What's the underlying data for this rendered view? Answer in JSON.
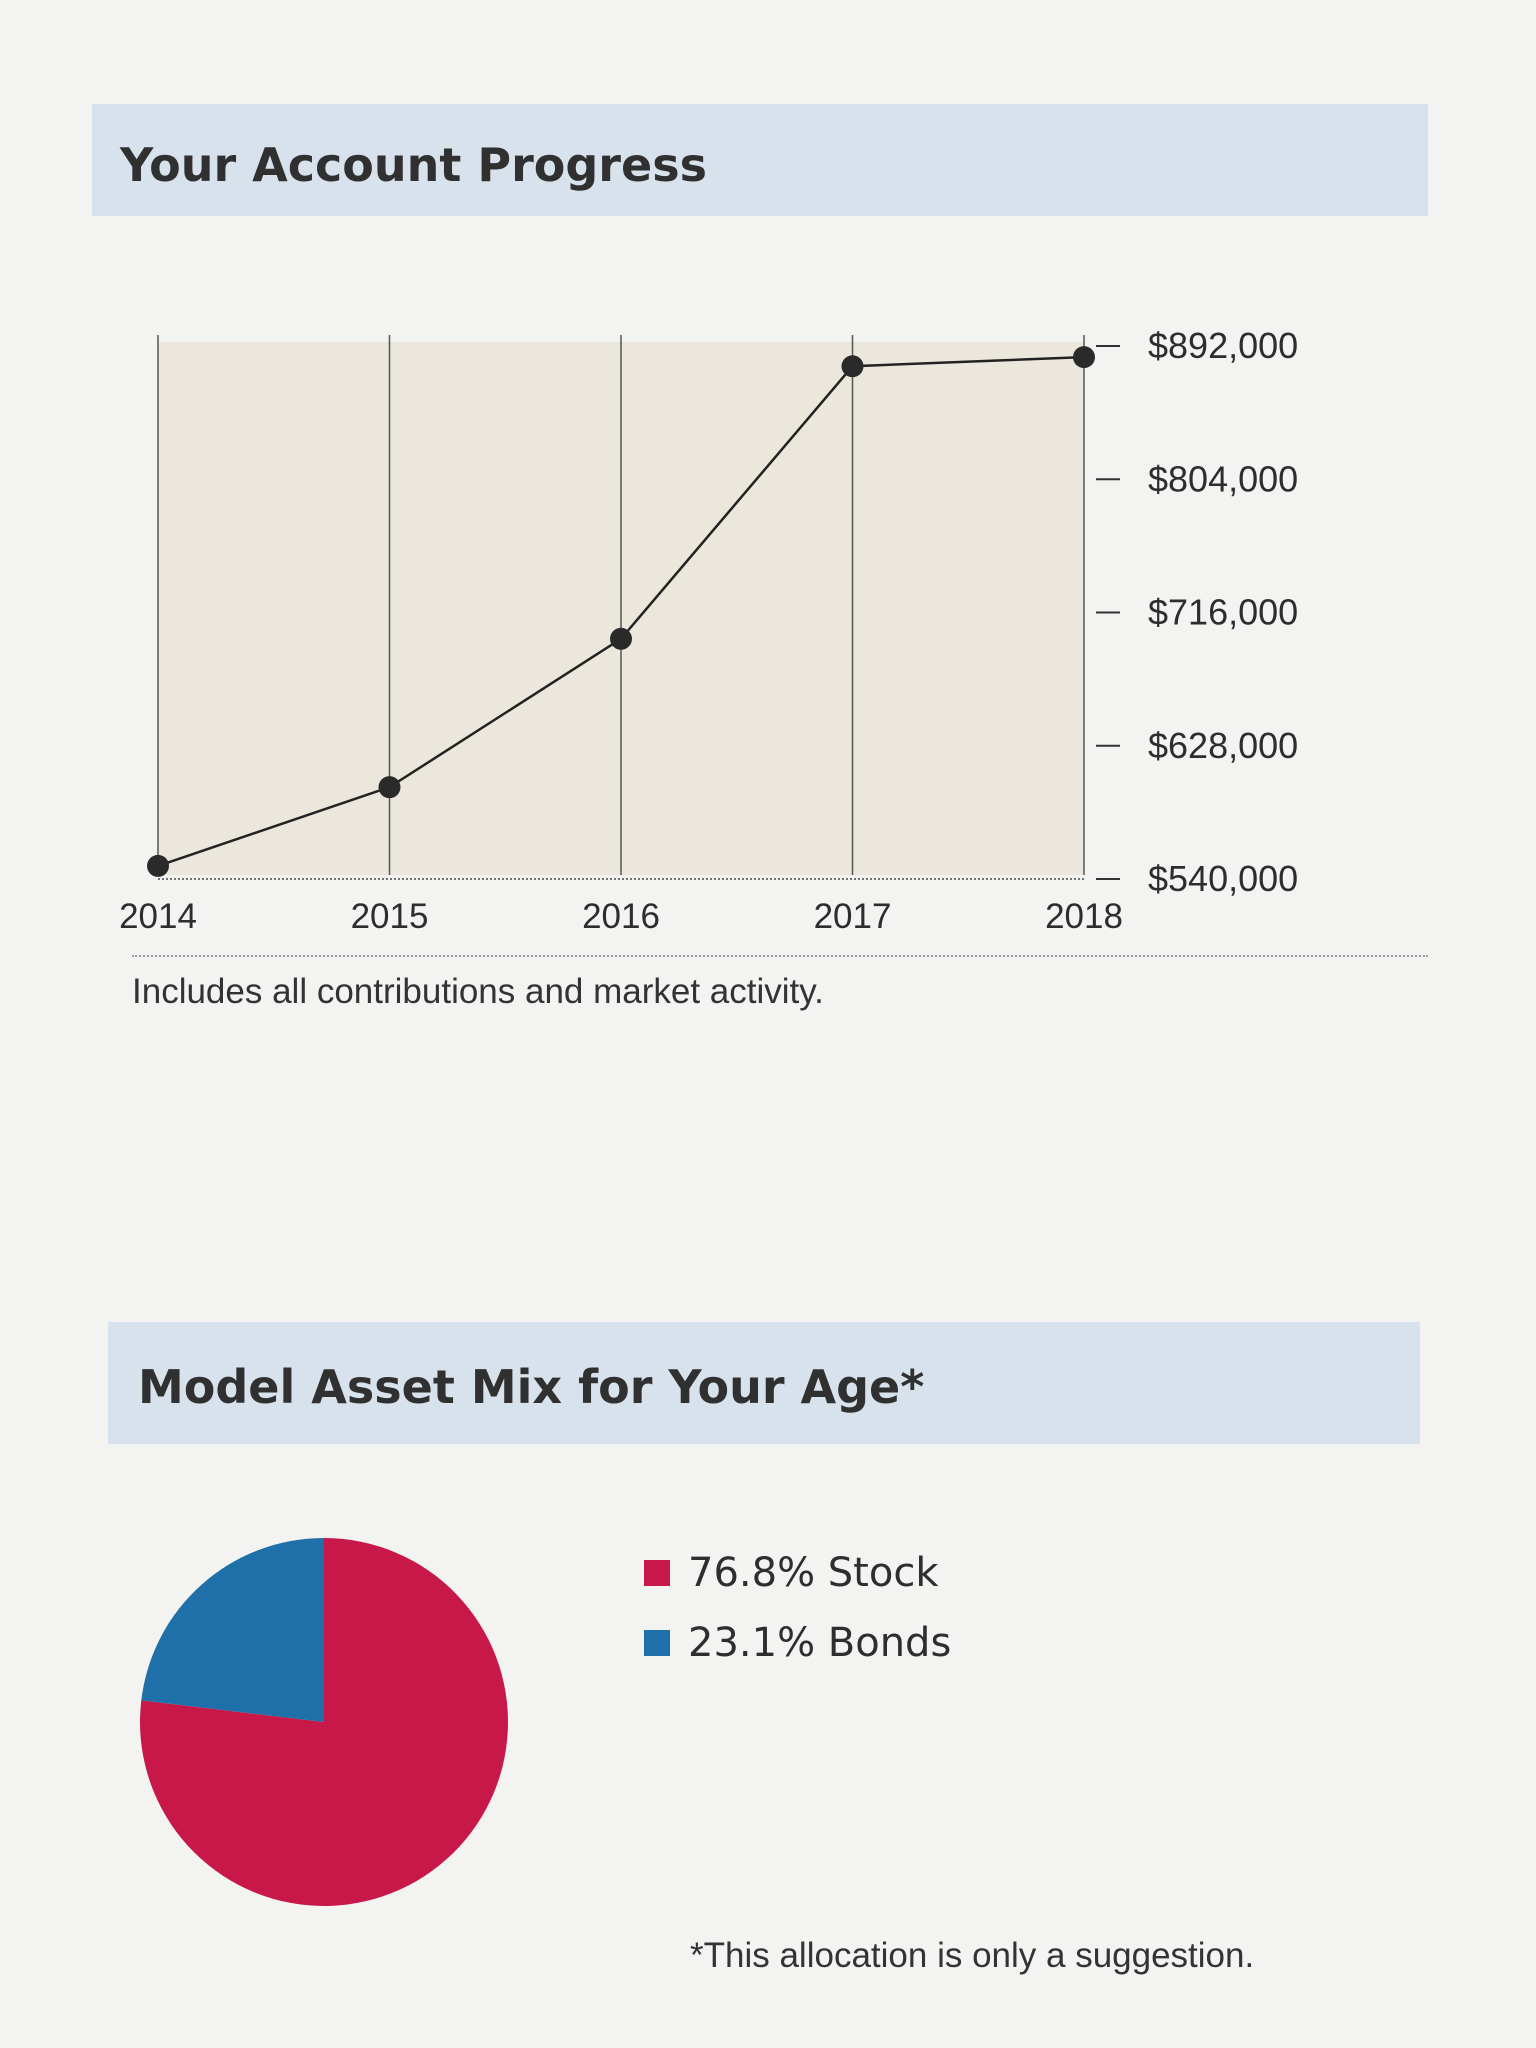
{
  "sections": {
    "progress_title": "Your Account Progress",
    "progress_note": "Includes all contributions and market activity.",
    "mix_title": "Model Asset Mix for Your Age*",
    "mix_note": "*This allocation is only a suggestion."
  },
  "colors": {
    "header_bg": "#d8e2ec",
    "plot_bg": "#ebe7dc",
    "stock": "#c8184a",
    "bonds": "#1f6fa8",
    "line": "#222222"
  },
  "chart_data": [
    {
      "type": "line",
      "title": "Your Account Progress",
      "x": [
        "2014",
        "2015",
        "2016",
        "2017",
        "2018"
      ],
      "series": [
        {
          "values": [
            546000,
            598000,
            696000,
            876000,
            882000
          ]
        }
      ],
      "yticks": [
        540000,
        628000,
        716000,
        804000,
        892000
      ],
      "ytick_labels": [
        "$540,000",
        "$628,000",
        "$716,000",
        "$804,000",
        "$892,000"
      ],
      "ylim": [
        540000,
        892000
      ],
      "y_axis_position": "right",
      "grid": "vertical lines at each year"
    },
    {
      "type": "pie",
      "title": "Model Asset Mix for Your Age*",
      "slices": [
        {
          "label": "Stock",
          "value": 76.8,
          "legend": "76.8% Stock"
        },
        {
          "label": "Bonds",
          "value": 23.1,
          "legend": "23.1% Bonds"
        }
      ],
      "legend_placement": "right"
    }
  ]
}
